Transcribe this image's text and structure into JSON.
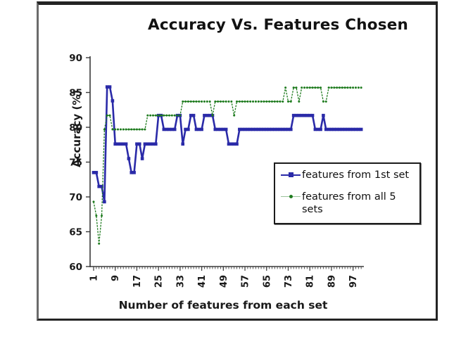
{
  "chart": {
    "title": "Accuracy Vs. Features Chosen",
    "x_axis_title": "Number of features from each set",
    "y_axis_title": "Accuracy (%)"
  },
  "legend": {
    "items": [
      {
        "label": "features from 1st set",
        "color": "#2a2aa8",
        "marker": "square"
      },
      {
        "label": "features from all 5 sets",
        "color": "#1e7b1e",
        "marker": "dot"
      }
    ]
  },
  "colors": {
    "series1": "#2a2aa8",
    "series2": "#1e7b1e",
    "axis": "#3a3a3a",
    "text": "#1a1a1a",
    "frame": "#242424",
    "background": "#ffffff"
  },
  "chart_data": {
    "type": "line",
    "title": "Accuracy Vs. Features Chosen",
    "xlabel": "Number of features from each set",
    "ylabel": "Accuracy (%)",
    "xlim": [
      1,
      100
    ],
    "ylim": [
      60,
      90
    ],
    "grid": false,
    "legend_position": "middle-right",
    "x_ticks": [
      1,
      9,
      17,
      25,
      33,
      41,
      49,
      57,
      65,
      73,
      81,
      89,
      97
    ],
    "y_ticks": [
      60,
      65,
      70,
      75,
      80,
      85,
      90
    ],
    "x": [
      1,
      2,
      3,
      4,
      5,
      6,
      7,
      8,
      9,
      10,
      11,
      12,
      13,
      14,
      15,
      16,
      17,
      18,
      19,
      20,
      21,
      22,
      23,
      24,
      25,
      26,
      27,
      28,
      29,
      30,
      31,
      32,
      33,
      34,
      35,
      36,
      37,
      38,
      39,
      40,
      41,
      42,
      43,
      44,
      45,
      46,
      47,
      48,
      49,
      50,
      51,
      52,
      53,
      54,
      55,
      56,
      57,
      58,
      59,
      60,
      61,
      62,
      63,
      64,
      65,
      66,
      67,
      68,
      69,
      70,
      71,
      72,
      73,
      74,
      75,
      76,
      77,
      78,
      79,
      80,
      81,
      82,
      83,
      84,
      85,
      86,
      87,
      88,
      89,
      90,
      91,
      92,
      93,
      94,
      95,
      96,
      97,
      98,
      99,
      100
    ],
    "series": [
      {
        "name": "features from 1st set",
        "color": "#2a2aa8",
        "marker": "square",
        "line_style": "solid",
        "values": [
          73.5,
          73.5,
          71.5,
          71.5,
          69.3,
          85.8,
          85.8,
          83.8,
          77.6,
          77.6,
          77.6,
          77.6,
          77.6,
          75.5,
          73.5,
          73.5,
          77.6,
          77.6,
          75.5,
          77.6,
          77.6,
          77.6,
          77.6,
          77.6,
          81.7,
          81.7,
          79.7,
          79.7,
          79.7,
          79.7,
          79.7,
          81.7,
          81.7,
          77.6,
          79.7,
          79.7,
          81.7,
          81.7,
          79.7,
          79.7,
          79.7,
          81.7,
          81.7,
          81.7,
          81.7,
          79.7,
          79.7,
          79.7,
          79.7,
          79.7,
          77.6,
          77.6,
          77.6,
          77.6,
          79.7,
          79.7,
          79.7,
          79.7,
          79.7,
          79.7,
          79.7,
          79.7,
          79.7,
          79.7,
          79.7,
          79.7,
          79.7,
          79.7,
          79.7,
          79.7,
          79.7,
          79.7,
          79.7,
          79.7,
          81.7,
          81.7,
          81.7,
          81.7,
          81.7,
          81.7,
          81.7,
          81.7,
          79.7,
          79.7,
          79.7,
          81.7,
          79.7,
          79.7,
          79.7,
          79.7,
          79.7,
          79.7,
          79.7,
          79.7,
          79.7,
          79.7,
          79.7,
          79.7,
          79.7,
          79.7
        ]
      },
      {
        "name": "features from all 5 sets",
        "color": "#1e7b1e",
        "marker": "dot",
        "line_style": "dashed",
        "values": [
          69.3,
          67.3,
          63.3,
          67.3,
          79.7,
          81.7,
          81.7,
          79.7,
          79.7,
          79.7,
          79.7,
          79.7,
          79.7,
          79.7,
          79.7,
          79.7,
          79.7,
          79.7,
          79.7,
          79.7,
          81.7,
          81.7,
          81.7,
          81.7,
          81.7,
          81.7,
          81.7,
          81.7,
          81.7,
          81.7,
          81.7,
          81.7,
          81.7,
          83.7,
          83.7,
          83.7,
          83.7,
          83.7,
          83.7,
          83.7,
          83.7,
          83.7,
          83.7,
          83.7,
          81.7,
          83.7,
          83.7,
          83.7,
          83.7,
          83.7,
          83.7,
          83.7,
          81.7,
          83.7,
          83.7,
          83.7,
          83.7,
          83.7,
          83.7,
          83.7,
          83.7,
          83.7,
          83.7,
          83.7,
          83.7,
          83.7,
          83.7,
          83.7,
          83.7,
          83.7,
          83.7,
          85.7,
          83.7,
          83.7,
          85.7,
          85.7,
          83.7,
          85.7,
          85.7,
          85.7,
          85.7,
          85.7,
          85.7,
          85.7,
          85.7,
          83.7,
          83.7,
          85.7,
          85.7,
          85.7,
          85.7,
          85.7,
          85.7,
          85.7,
          85.7,
          85.7,
          85.7,
          85.7,
          85.7,
          85.7
        ]
      }
    ]
  }
}
